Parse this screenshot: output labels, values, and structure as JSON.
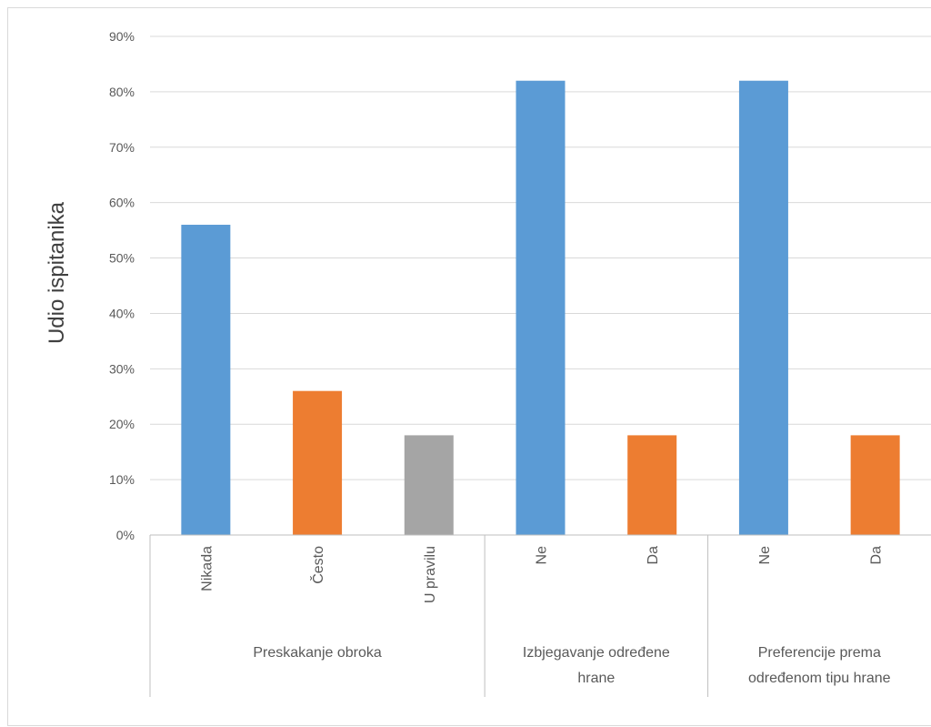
{
  "chart_data": {
    "type": "bar",
    "ylabel": "Udio ispitanika",
    "xlabel": "",
    "ylim": [
      0,
      90
    ],
    "y_ticks": [
      "0%",
      "10%",
      "20%",
      "30%",
      "40%",
      "50%",
      "60%",
      "70%",
      "80%",
      "90%"
    ],
    "grid": true,
    "groups": [
      {
        "label": [
          "Preskakanje obroka"
        ],
        "bars": [
          {
            "label": "Nikada",
            "value": 56,
            "color": "#5b9bd5"
          },
          {
            "label": "Često",
            "value": 26,
            "color": "#ed7d31"
          },
          {
            "label": "U pravilu",
            "value": 18,
            "color": "#a5a5a5"
          }
        ]
      },
      {
        "label": [
          "Izbjegavanje određene",
          "hrane"
        ],
        "bars": [
          {
            "label": "Ne",
            "value": 82,
            "color": "#5b9bd5"
          },
          {
            "label": "Da",
            "value": 18,
            "color": "#ed7d31"
          }
        ]
      },
      {
        "label": [
          "Preferencije prema",
          "određenom tipu hrane"
        ],
        "bars": [
          {
            "label": "Ne",
            "value": 82,
            "color": "#5b9bd5"
          },
          {
            "label": "Da",
            "value": 18,
            "color": "#ed7d31"
          }
        ]
      }
    ]
  }
}
